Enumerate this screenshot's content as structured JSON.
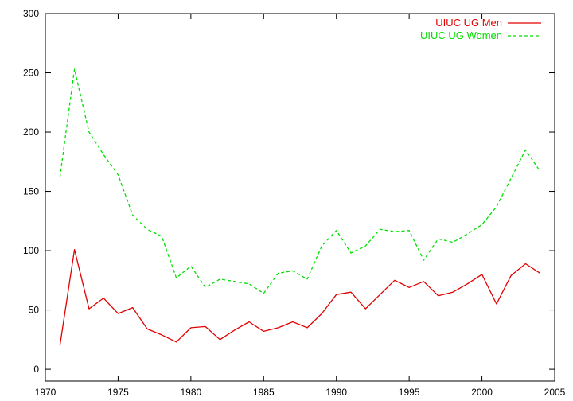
{
  "chart_data": {
    "type": "line",
    "title": "",
    "xlabel": "",
    "ylabel": "",
    "xlim": [
      1970,
      2005
    ],
    "ylim": [
      -10,
      300
    ],
    "x_ticks": [
      1970,
      1975,
      1980,
      1985,
      1990,
      1995,
      2000,
      2005
    ],
    "y_ticks": [
      0,
      50,
      100,
      150,
      200,
      250,
      300
    ],
    "grid": false,
    "legend_position": "top-right",
    "x": [
      1971,
      1972,
      1973,
      1974,
      1975,
      1976,
      1977,
      1978,
      1979,
      1980,
      1981,
      1982,
      1983,
      1984,
      1985,
      1986,
      1987,
      1988,
      1989,
      1990,
      1991,
      1992,
      1993,
      1994,
      1995,
      1996,
      1997,
      1998,
      1999,
      2000,
      2001,
      2002,
      2003,
      2004
    ],
    "series": [
      {
        "name": "UIUC UG Men",
        "color": "#e00000",
        "line_style": "solid",
        "values": [
          20,
          101,
          51,
          60,
          47,
          52,
          34,
          29,
          23,
          35,
          36,
          25,
          33,
          40,
          32,
          35,
          40,
          35,
          47,
          63,
          65,
          51,
          63,
          75,
          69,
          74,
          62,
          65,
          72,
          80,
          55,
          79,
          89,
          81
        ]
      },
      {
        "name": "UIUC UG Women",
        "color": "#00e000",
        "line_style": "dashed",
        "values": [
          162,
          253,
          200,
          181,
          164,
          130,
          118,
          112,
          77,
          87,
          69,
          76,
          74,
          72,
          64,
          81,
          83,
          76,
          104,
          117,
          98,
          104,
          118,
          116,
          117,
          92,
          110,
          107,
          114,
          122,
          137,
          161,
          185,
          167
        ]
      }
    ]
  }
}
